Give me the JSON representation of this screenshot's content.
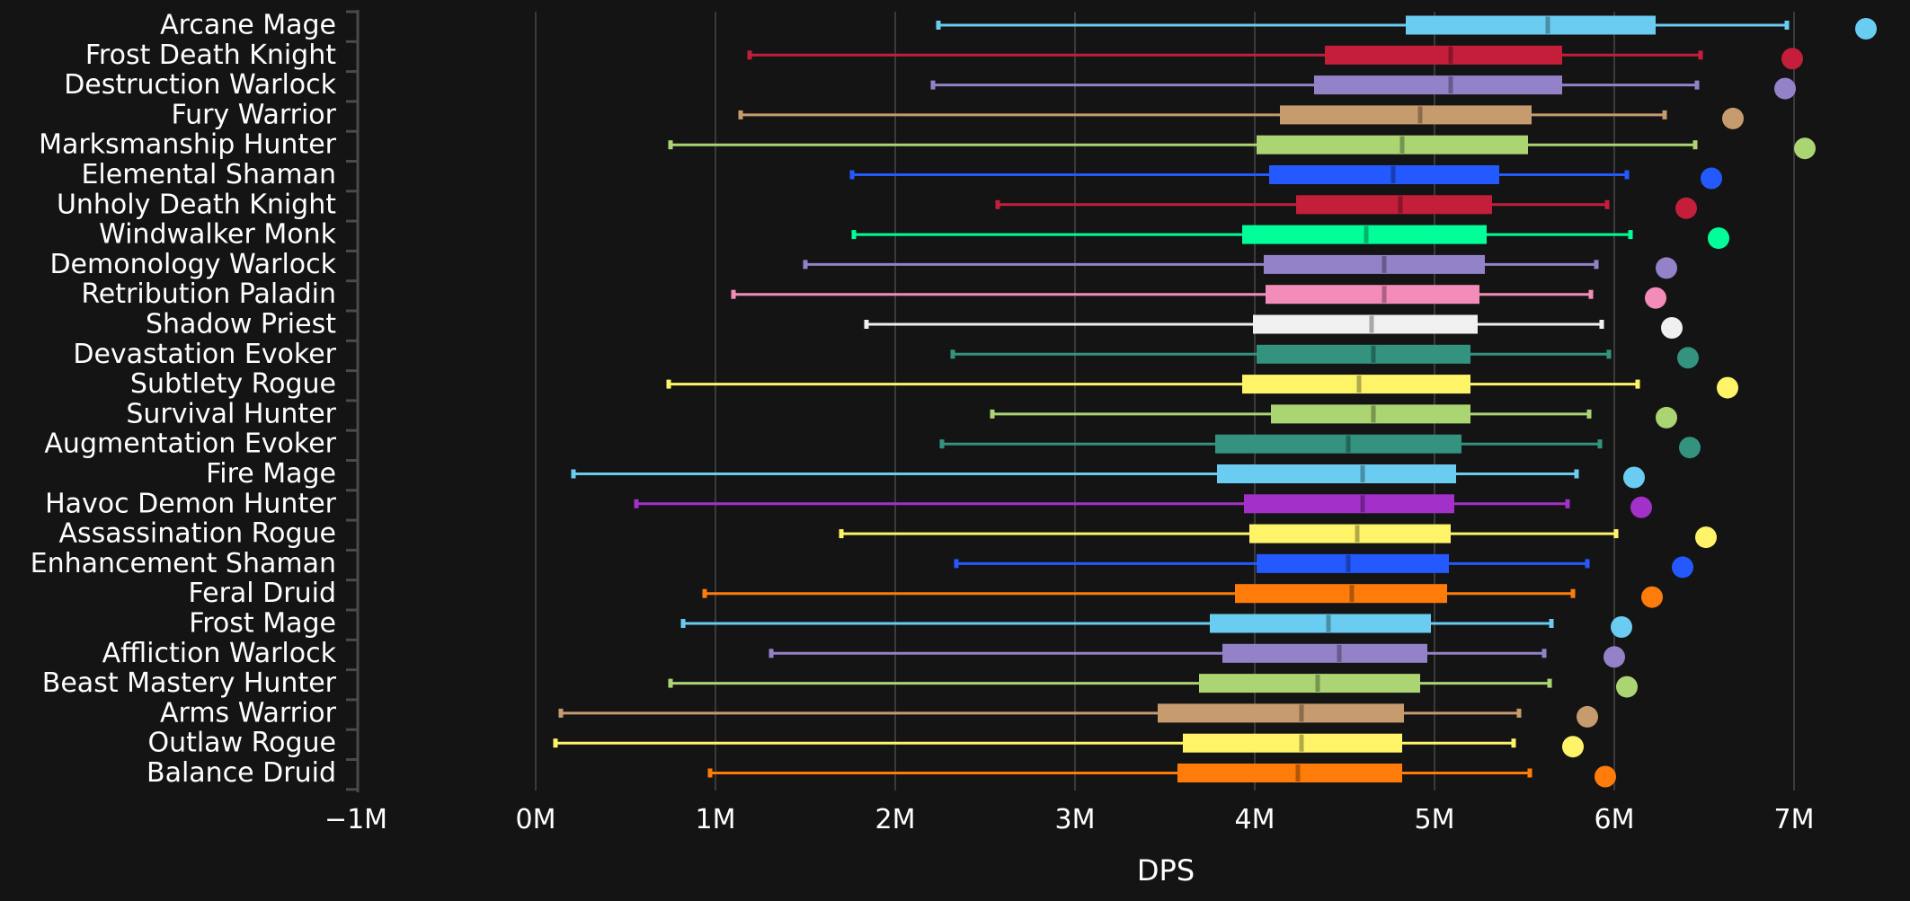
{
  "chart_data": {
    "type": "boxplot",
    "title": "",
    "xlabel": "DPS",
    "ylabel": "",
    "xlim": [
      -1000000,
      7500000
    ],
    "x_ticks": [
      -1000000,
      0,
      1000000,
      2000000,
      3000000,
      4000000,
      5000000,
      6000000,
      7000000
    ],
    "x_tick_labels": [
      "−1M",
      "0M",
      "1M",
      "2M",
      "3M",
      "4M",
      "5M",
      "6M",
      "7M"
    ],
    "grid": "vertical",
    "legend": "none",
    "units": "DPS",
    "series": [
      {
        "name": "Arcane Mage",
        "color": "#69CCF0",
        "min": 2240000,
        "q1": 4840000,
        "median": 5630000,
        "q3": 6230000,
        "max": 6960000,
        "outlier": 7400000
      },
      {
        "name": "Frost Death Knight",
        "color": "#C41E3A",
        "min": 1190000,
        "q1": 4390000,
        "median": 5090000,
        "q3": 5710000,
        "max": 6480000,
        "outlier": 6990000
      },
      {
        "name": "Destruction Warlock",
        "color": "#9482C9",
        "min": 2210000,
        "q1": 4330000,
        "median": 5090000,
        "q3": 5710000,
        "max": 6460000,
        "outlier": 6950000
      },
      {
        "name": "Fury Warrior",
        "color": "#C69B6D",
        "min": 1140000,
        "q1": 4140000,
        "median": 4920000,
        "q3": 5540000,
        "max": 6280000,
        "outlier": 6660000
      },
      {
        "name": "Marksmanship Hunter",
        "color": "#ABD473",
        "min": 750000,
        "q1": 4010000,
        "median": 4820000,
        "q3": 5520000,
        "max": 6450000,
        "outlier": 7060000
      },
      {
        "name": "Elemental Shaman",
        "color": "#2359FF",
        "min": 1760000,
        "q1": 4080000,
        "median": 4770000,
        "q3": 5360000,
        "max": 6070000,
        "outlier": 6540000
      },
      {
        "name": "Unholy Death Knight",
        "color": "#C41E3A",
        "min": 2570000,
        "q1": 4230000,
        "median": 4810000,
        "q3": 5320000,
        "max": 5960000,
        "outlier": 6400000
      },
      {
        "name": "Windwalker Monk",
        "color": "#00FF98",
        "min": 1770000,
        "q1": 3930000,
        "median": 4620000,
        "q3": 5290000,
        "max": 6090000,
        "outlier": 6580000
      },
      {
        "name": "Demonology Warlock",
        "color": "#9482C9",
        "min": 1500000,
        "q1": 4050000,
        "median": 4720000,
        "q3": 5280000,
        "max": 5900000,
        "outlier": 6290000
      },
      {
        "name": "Retribution Paladin",
        "color": "#F48CBA",
        "min": 1100000,
        "q1": 4060000,
        "median": 4720000,
        "q3": 5250000,
        "max": 5870000,
        "outlier": 6230000
      },
      {
        "name": "Shadow Priest",
        "color": "#F0F0F0",
        "min": 1840000,
        "q1": 3990000,
        "median": 4650000,
        "q3": 5240000,
        "max": 5930000,
        "outlier": 6320000
      },
      {
        "name": "Devastation Evoker",
        "color": "#33937F",
        "min": 2320000,
        "q1": 4010000,
        "median": 4660000,
        "q3": 5200000,
        "max": 5970000,
        "outlier": 6410000
      },
      {
        "name": "Subtlety Rogue",
        "color": "#FFF468",
        "min": 740000,
        "q1": 3930000,
        "median": 4580000,
        "q3": 5200000,
        "max": 6130000,
        "outlier": 6630000
      },
      {
        "name": "Survival Hunter",
        "color": "#ABD473",
        "min": 2540000,
        "q1": 4090000,
        "median": 4660000,
        "q3": 5200000,
        "max": 5860000,
        "outlier": 6290000
      },
      {
        "name": "Augmentation Evoker",
        "color": "#33937F",
        "min": 2260000,
        "q1": 3780000,
        "median": 4520000,
        "q3": 5150000,
        "max": 5920000,
        "outlier": 6420000
      },
      {
        "name": "Fire Mage",
        "color": "#69CCF0",
        "min": 210000,
        "q1": 3790000,
        "median": 4600000,
        "q3": 5120000,
        "max": 5790000,
        "outlier": 6110000
      },
      {
        "name": "Havoc Demon Hunter",
        "color": "#A330C9",
        "min": 560000,
        "q1": 3940000,
        "median": 4600000,
        "q3": 5110000,
        "max": 5740000,
        "outlier": 6150000
      },
      {
        "name": "Assassination Rogue",
        "color": "#FFF468",
        "min": 1700000,
        "q1": 3970000,
        "median": 4570000,
        "q3": 5090000,
        "max": 6010000,
        "outlier": 6510000
      },
      {
        "name": "Enhancement Shaman",
        "color": "#2359FF",
        "min": 2340000,
        "q1": 4010000,
        "median": 4520000,
        "q3": 5080000,
        "max": 5850000,
        "outlier": 6380000
      },
      {
        "name": "Feral Druid",
        "color": "#FF7C0A",
        "min": 940000,
        "q1": 3890000,
        "median": 4540000,
        "q3": 5070000,
        "max": 5770000,
        "outlier": 6210000
      },
      {
        "name": "Frost Mage",
        "color": "#69CCF0",
        "min": 820000,
        "q1": 3750000,
        "median": 4410000,
        "q3": 4980000,
        "max": 5650000,
        "outlier": 6040000
      },
      {
        "name": "Affliction Warlock",
        "color": "#9482C9",
        "min": 1310000,
        "q1": 3820000,
        "median": 4470000,
        "q3": 4960000,
        "max": 5610000,
        "outlier": 6000000
      },
      {
        "name": "Beast Mastery Hunter",
        "color": "#ABD473",
        "min": 750000,
        "q1": 3690000,
        "median": 4350000,
        "q3": 4920000,
        "max": 5640000,
        "outlier": 6070000
      },
      {
        "name": "Arms Warrior",
        "color": "#C69B6D",
        "min": 140000,
        "q1": 3460000,
        "median": 4260000,
        "q3": 4830000,
        "max": 5470000,
        "outlier": 5850000
      },
      {
        "name": "Outlaw Rogue",
        "color": "#FFF468",
        "min": 110000,
        "q1": 3600000,
        "median": 4260000,
        "q3": 4820000,
        "max": 5440000,
        "outlier": 5770000
      },
      {
        "name": "Balance Druid",
        "color": "#FF7C0A",
        "min": 970000,
        "q1": 3570000,
        "median": 4240000,
        "q3": 4820000,
        "max": 5530000,
        "outlier": 5950000
      }
    ]
  },
  "colors": {
    "background": "#141414",
    "grid": "#3a3a3a",
    "axis": "#4a4a4a",
    "text": "#ffffff"
  }
}
